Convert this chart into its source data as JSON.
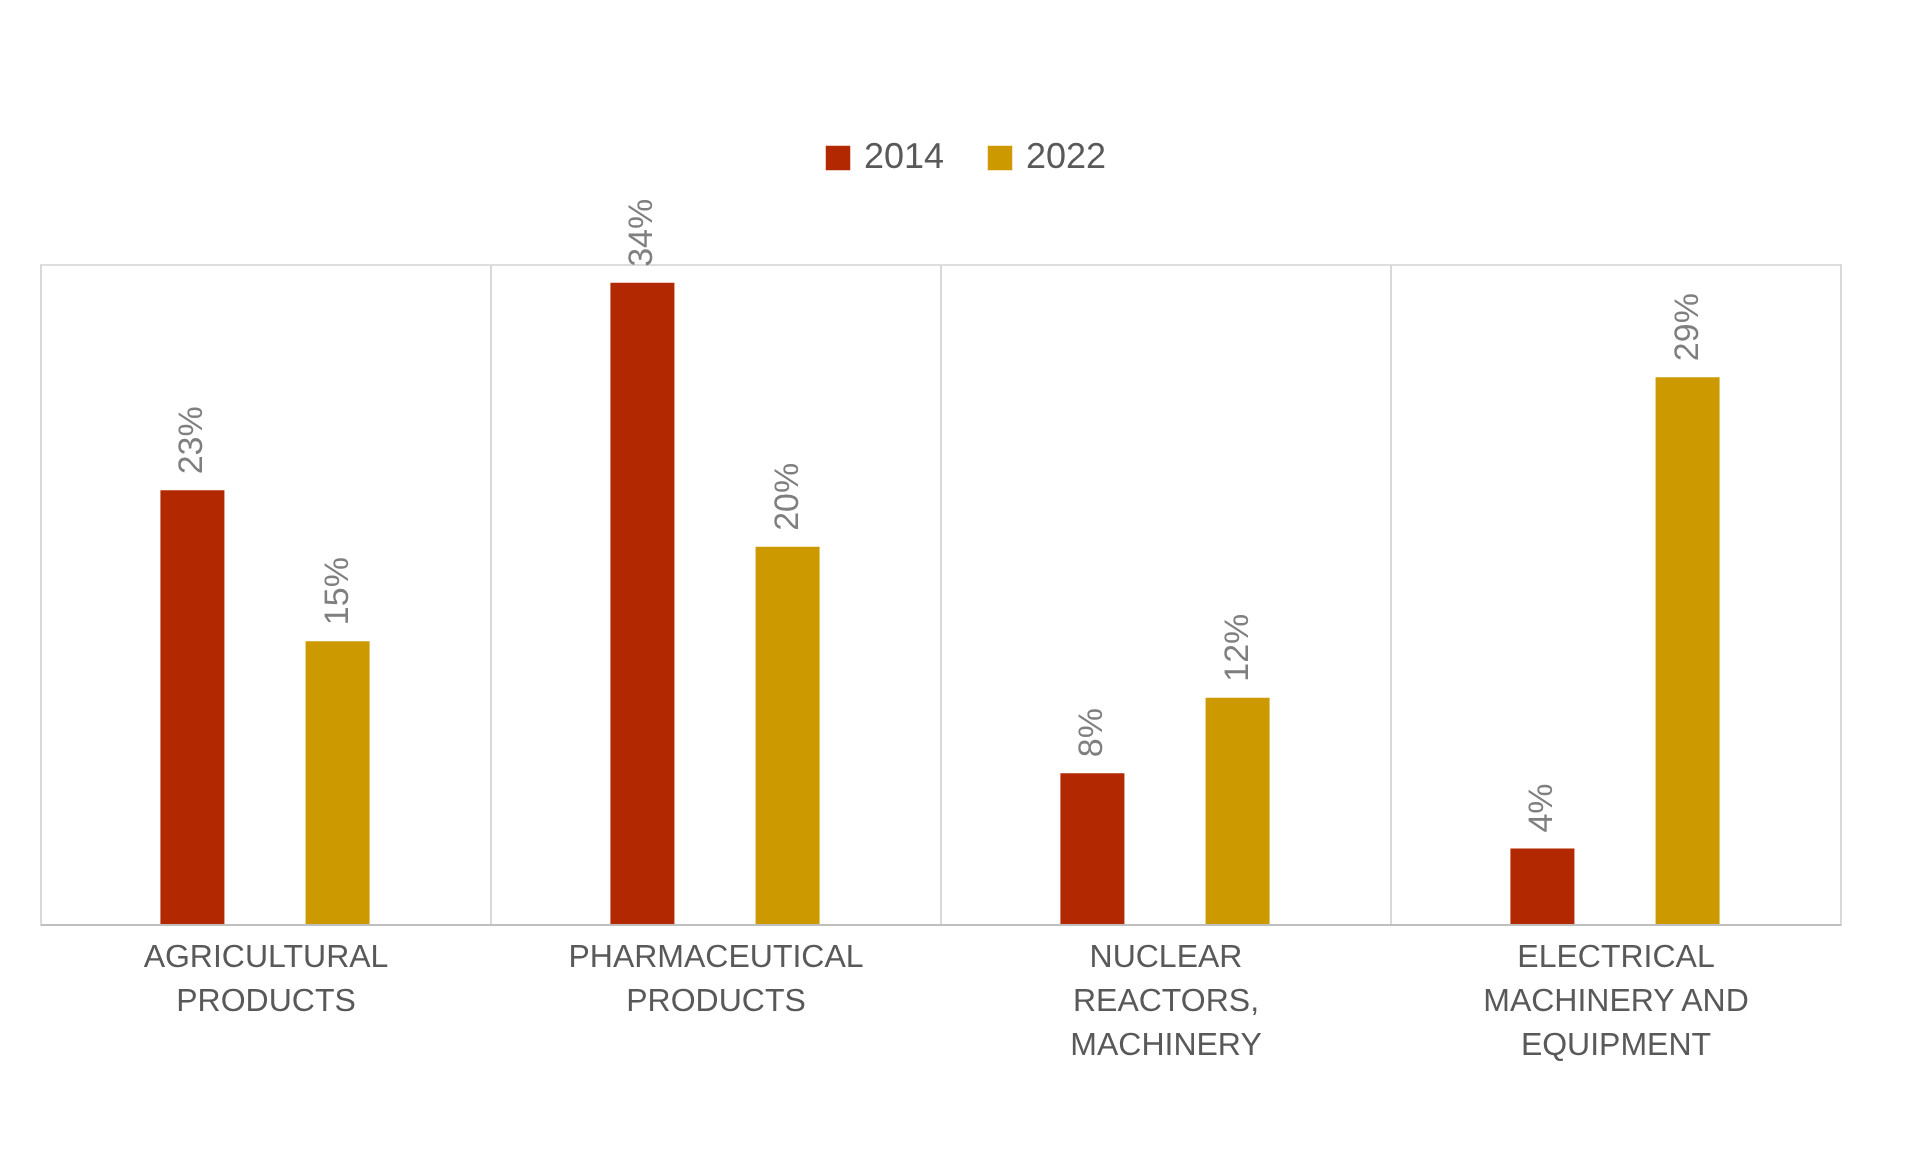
{
  "chart_data": {
    "type": "bar",
    "categories": [
      "AGRICULTURAL\nPRODUCTS",
      "PHARMACEUTICAL\nPRODUCTS",
      "NUCLEAR\nREACTORS,\nMACHINERY",
      "ELECTRICAL\nMACHINERY AND\nEQUIPMENT"
    ],
    "series": [
      {
        "name": "2014",
        "color": "#b22800",
        "values": [
          23,
          34,
          8,
          4
        ],
        "value_labels": [
          "23%",
          "34%",
          "8%",
          "4%"
        ]
      },
      {
        "name": "2022",
        "color": "#cc9900",
        "values": [
          15,
          20,
          12,
          29
        ],
        "value_labels": [
          "15%",
          "20%",
          "12%",
          "29%"
        ]
      }
    ],
    "grid": "x",
    "legend": "top"
  }
}
